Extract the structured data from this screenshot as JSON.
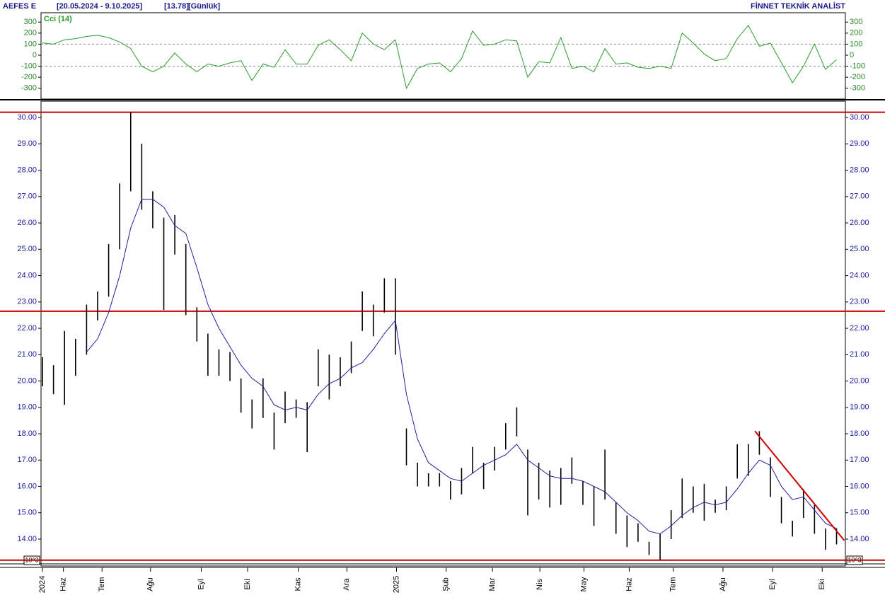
{
  "header": {
    "symbol": "AEFES E",
    "range": "[20.05.2024 - 9.10.2025]",
    "last": "[13.78]",
    "period": "[Günlük]",
    "brand": "FİNNET TEKNİK ANALİST",
    "scale_note": "10^3"
  },
  "chart_data": [
    {
      "type": "line",
      "name": "Cci (14)",
      "color": "#2a9d2a",
      "label_color": "#2a8a2a",
      "xlim": [
        -0.13,
        72.8
      ],
      "ylim": [
        -398,
        385
      ],
      "yticks": [
        300,
        200,
        100,
        0,
        -100,
        -200,
        -300
      ],
      "ref_lines": [
        100,
        -100
      ],
      "values": [
        110,
        100,
        140,
        150,
        170,
        180,
        160,
        120,
        60,
        -100,
        -150,
        -100,
        20,
        -80,
        -150,
        -80,
        -100,
        -70,
        -50,
        -230,
        -80,
        -110,
        50,
        -80,
        -80,
        90,
        140,
        50,
        -50,
        200,
        100,
        50,
        140,
        -300,
        -120,
        -80,
        -70,
        -150,
        -30,
        220,
        90,
        100,
        140,
        130,
        -200,
        -60,
        -70,
        160,
        -120,
        -100,
        -150,
        60,
        -80,
        -70,
        -110,
        -120,
        -100,
        -120,
        200,
        110,
        10,
        -50,
        -30,
        150,
        270,
        80,
        110,
        -70,
        -250,
        -100,
        100,
        -130,
        -40
      ]
    },
    {
      "type": "hilo",
      "color": "#000000",
      "label_color": "#1a1aa0",
      "xlim": [
        -0.13,
        72.8
      ],
      "ylim": [
        12.98,
        30.62
      ],
      "yticks": [
        {
          "value": 14,
          "label": "14.00"
        },
        {
          "value": 15,
          "label": "15.00"
        },
        {
          "value": 16,
          "label": "16.00"
        },
        {
          "value": 17,
          "label": "17.00"
        },
        {
          "value": 18,
          "label": "18.00"
        },
        {
          "value": 19,
          "label": "19.00"
        },
        {
          "value": 20,
          "label": "20.00"
        },
        {
          "value": 21,
          "label": "21.00"
        },
        {
          "value": 22,
          "label": "22.00"
        },
        {
          "value": 23,
          "label": "23.00"
        },
        {
          "value": 24,
          "label": "24.00"
        },
        {
          "value": 25,
          "label": "25.00"
        },
        {
          "value": 26,
          "label": "26.00"
        },
        {
          "value": 27,
          "label": "27.00"
        },
        {
          "value": 28,
          "label": "28.00"
        },
        {
          "value": 29,
          "label": "29.00"
        },
        {
          "value": 30,
          "label": "30.00"
        }
      ],
      "xticks": [
        {
          "value": 0,
          "label": "2024"
        },
        {
          "value": 1.9,
          "label": "Haz"
        },
        {
          "value": 5.4,
          "label": "Tem"
        },
        {
          "value": 9.8,
          "label": "Ağu"
        },
        {
          "value": 14.4,
          "label": "Eyl"
        },
        {
          "value": 18.6,
          "label": "Eki"
        },
        {
          "value": 23.2,
          "label": "Kas"
        },
        {
          "value": 27.6,
          "label": "Ara"
        },
        {
          "value": 32.1,
          "label": "2025"
        },
        {
          "value": 36.6,
          "label": "Şub"
        },
        {
          "value": 40.8,
          "label": "Mar"
        },
        {
          "value": 45.1,
          "label": "Nis"
        },
        {
          "value": 49.1,
          "label": "May"
        },
        {
          "value": 53.2,
          "label": "Haz"
        },
        {
          "value": 57.2,
          "label": "Tem"
        },
        {
          "value": 61.7,
          "label": "Ağu"
        },
        {
          "value": 66.2,
          "label": "Eyl"
        },
        {
          "value": 70.7,
          "label": "Eki"
        }
      ],
      "high": [
        20.9,
        20.6,
        21.9,
        21.6,
        22.9,
        23.4,
        25.2,
        27.5,
        30.2,
        29.0,
        27.2,
        26.2,
        26.3,
        25.2,
        22.8,
        21.8,
        21.2,
        21.1,
        20.1,
        19.3,
        20.1,
        18.8,
        19.6,
        19.3,
        19.2,
        21.2,
        21.0,
        20.9,
        21.5,
        23.4,
        22.9,
        23.9,
        23.9,
        18.2,
        16.9,
        16.5,
        16.5,
        16.2,
        16.7,
        17.5,
        16.9,
        17.5,
        18.4,
        19.0,
        17.4,
        16.9,
        16.6,
        16.7,
        17.1,
        16.2,
        16.0,
        17.4,
        15.4,
        14.9,
        14.6,
        13.9,
        14.2,
        15.1,
        16.3,
        16.0,
        16.1,
        15.5,
        16.0,
        17.6,
        17.6,
        18.1,
        17.1,
        15.6,
        14.7,
        15.9,
        15.3,
        14.4,
        14.4
      ],
      "low": [
        19.8,
        19.5,
        19.1,
        20.2,
        21.0,
        22.3,
        23.2,
        25.0,
        27.2,
        26.5,
        25.8,
        22.7,
        24.8,
        22.5,
        21.5,
        20.2,
        20.2,
        20.0,
        18.8,
        18.2,
        18.6,
        17.4,
        18.4,
        18.6,
        17.3,
        19.8,
        19.3,
        19.8,
        20.3,
        21.9,
        21.7,
        22.6,
        21.0,
        16.8,
        16.0,
        16.0,
        16.0,
        15.5,
        15.7,
        16.5,
        15.9,
        16.6,
        17.4,
        17.9,
        14.9,
        15.5,
        15.2,
        15.3,
        16.1,
        15.3,
        14.5,
        15.5,
        14.2,
        13.7,
        13.9,
        13.4,
        13.2,
        14.0,
        14.8,
        15.0,
        14.7,
        15.0,
        15.1,
        16.3,
        16.4,
        17.2,
        15.6,
        14.6,
        14.1,
        14.8,
        14.2,
        13.6,
        13.8
      ],
      "ma": {
        "color": "#1f1f9f",
        "values": [
          null,
          null,
          null,
          null,
          21.1,
          21.6,
          22.6,
          24.0,
          25.8,
          26.9,
          26.9,
          26.6,
          25.9,
          25.6,
          24.3,
          22.9,
          22.0,
          21.3,
          20.6,
          20.1,
          19.8,
          19.1,
          18.9,
          19.0,
          18.9,
          19.5,
          19.9,
          20.1,
          20.5,
          20.7,
          21.2,
          21.8,
          22.3,
          19.5,
          17.8,
          16.9,
          16.6,
          16.3,
          16.2,
          16.5,
          16.8,
          17.0,
          17.2,
          17.6,
          17.0,
          16.7,
          16.4,
          16.3,
          16.3,
          16.2,
          16.0,
          15.8,
          15.4,
          15.0,
          14.7,
          14.3,
          14.2,
          14.5,
          14.9,
          15.2,
          15.4,
          15.3,
          15.4,
          15.9,
          16.5,
          17.0,
          16.8,
          16.0,
          15.5,
          15.6,
          15.1,
          14.6,
          14.4
        ]
      },
      "hlines": {
        "color": "#cc0000",
        "values": [
          30.2,
          22.65,
          13.2
        ]
      },
      "trendline": {
        "color": "#cc0000",
        "x": [
          64.6,
          72.7
        ],
        "y": [
          18.1,
          13.95
        ]
      }
    }
  ]
}
